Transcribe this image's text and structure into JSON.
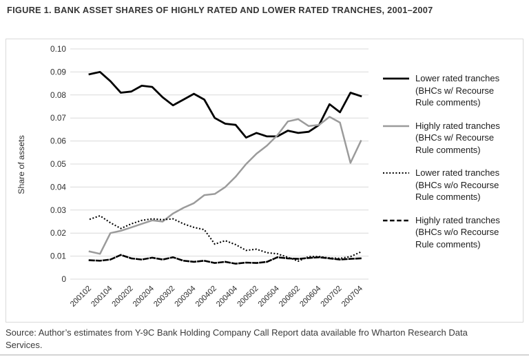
{
  "figure": {
    "title": "FIGURE 1. BANK ASSET SHARES OF HIGHLY RATED AND LOWER RATED TRANCHES, 2001–2007",
    "source": "Source: Author’s estimates from Y-9C Bank Holding Company Call Report data available fro Wharton Research Data\nServices."
  },
  "colors": {
    "grid": "#d9d9d9",
    "frame_border": "#d9d9d9",
    "axis_text": "#2e2e2e",
    "black_series": "#000000",
    "gray_series": "#9b9b9b"
  },
  "chart_data": {
    "type": "line",
    "title": "FIGURE 1. BANK ASSET SHARES OF HIGHLY RATED AND LOWER RATED TRANCHES, 2001–2007",
    "xlabel": "",
    "ylabel": "Share of assets",
    "ylim": [
      0,
      0.1
    ],
    "ytick_step": 0.01,
    "ytick_labels": [
      "0",
      "0.01",
      "0.02",
      "0.03",
      "0.04",
      "0.05",
      "0.06",
      "0.07",
      "0.08",
      "0.09",
      "0.10"
    ],
    "grid": true,
    "legend_position": "right",
    "xtick_every": 2,
    "categories": [
      "200102",
      "200103",
      "200104",
      "200201",
      "200202",
      "200203",
      "200204",
      "200301",
      "200302",
      "200303",
      "200304",
      "200401",
      "200402",
      "200403",
      "200404",
      "200501",
      "200502",
      "200503",
      "200504",
      "200601",
      "200602",
      "200603",
      "200604",
      "200701",
      "200702",
      "200703",
      "200704"
    ],
    "series": [
      {
        "name": "Lower rated tranches\n(BHCs w/ Recourse\nRule comments)",
        "style": "solid",
        "color": "#000000",
        "width": 2.8,
        "values": [
          0.089,
          0.09,
          0.086,
          0.081,
          0.0815,
          0.084,
          0.0835,
          0.079,
          0.0755,
          0.078,
          0.0805,
          0.078,
          0.07,
          0.0675,
          0.067,
          0.0615,
          0.0635,
          0.062,
          0.062,
          0.0645,
          0.0635,
          0.064,
          0.067,
          0.076,
          0.0725,
          0.081,
          0.0795
        ]
      },
      {
        "name": "Highly rated tranches\n(BHCs w/ Recourse\nRule comments)",
        "style": "solid",
        "color": "#9b9b9b",
        "width": 2.5,
        "values": [
          0.012,
          0.011,
          0.02,
          0.021,
          0.0225,
          0.024,
          0.0255,
          0.025,
          0.0285,
          0.031,
          0.033,
          0.0365,
          0.037,
          0.04,
          0.0445,
          0.05,
          0.0545,
          0.058,
          0.0625,
          0.0685,
          0.0695,
          0.0665,
          0.067,
          0.0705,
          0.068,
          0.0505,
          0.06
        ]
      },
      {
        "name": "Lower rated tranches\n(BHCs w/o Recourse\nRule comments)",
        "style": "dotted",
        "color": "#000000",
        "width": 2.1,
        "values": [
          0.026,
          0.0275,
          0.0245,
          0.022,
          0.024,
          0.0255,
          0.0262,
          0.0258,
          0.0262,
          0.024,
          0.0225,
          0.0215,
          0.0152,
          0.0167,
          0.015,
          0.0125,
          0.013,
          0.0115,
          0.011,
          0.0095,
          0.0078,
          0.0098,
          0.0098,
          0.0092,
          0.009,
          0.0098,
          0.0118
        ]
      },
      {
        "name": "Highly rated tranches\n(BHCs w/o Recourse\nRule comments)",
        "style": "dashed",
        "color": "#000000",
        "width": 2.6,
        "values": [
          0.0082,
          0.008,
          0.0085,
          0.0105,
          0.009,
          0.0085,
          0.0093,
          0.0085,
          0.0095,
          0.008,
          0.0075,
          0.008,
          0.007,
          0.0075,
          0.0067,
          0.0072,
          0.007,
          0.0075,
          0.0095,
          0.009,
          0.0088,
          0.0092,
          0.0095,
          0.009,
          0.0085,
          0.0088,
          0.009
        ]
      }
    ]
  }
}
